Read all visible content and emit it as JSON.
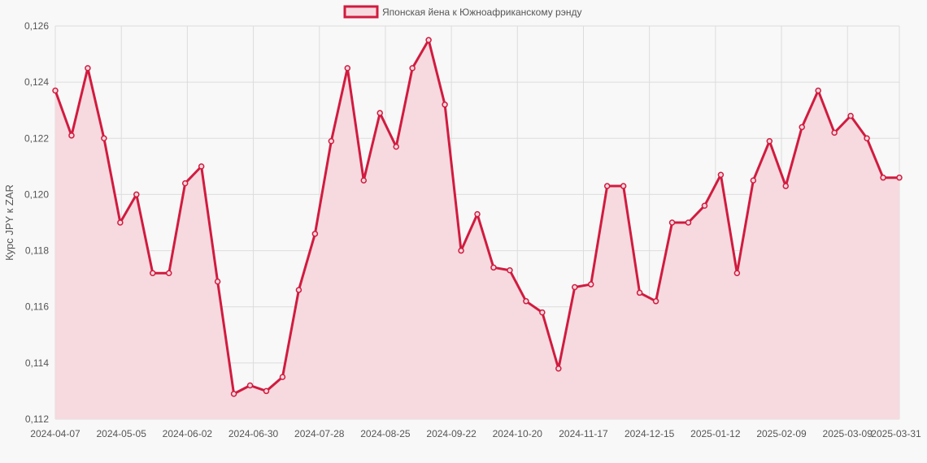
{
  "chart_data": {
    "type": "area",
    "series": [
      {
        "name": "Японская йена к Южноафриканскому рэнду",
        "color": "#d11b3f",
        "fill": "#f6dadf",
        "values": [
          0.1237,
          0.1221,
          0.1245,
          0.122,
          0.119,
          0.12,
          0.1172,
          0.1172,
          0.1204,
          0.121,
          0.1169,
          0.1129,
          0.1132,
          0.113,
          0.1135,
          0.1166,
          0.1186,
          0.1219,
          0.1245,
          0.1205,
          0.1229,
          0.1217,
          0.1245,
          0.1255,
          0.1232,
          0.118,
          0.1193,
          0.1174,
          0.1173,
          0.1162,
          0.1158,
          0.1138,
          0.1167,
          0.1168,
          0.1203,
          0.1203,
          0.1165,
          0.1162,
          0.119,
          0.119,
          0.1196,
          0.1207,
          0.1172,
          0.1205,
          0.1219,
          0.1203,
          0.1224,
          0.1237,
          0.1222,
          0.1228,
          0.122,
          0.1206,
          0.1206
        ]
      }
    ],
    "x_start": "2024-04-07",
    "x_end": "2025-03-31",
    "x_ticks": [
      "2024-04-07",
      "2024-05-05",
      "2024-06-02",
      "2024-06-30",
      "2024-07-28",
      "2024-08-25",
      "2024-09-22",
      "2024-10-20",
      "2024-11-17",
      "2024-12-15",
      "2025-01-12",
      "2025-02-09",
      "2025-03-09",
      "2025-03-31"
    ],
    "ylim": [
      0.112,
      0.126
    ],
    "y_ticks": [
      "0,112",
      "0,114",
      "0,116",
      "0,118",
      "0,120",
      "0,122",
      "0,124",
      "0,126"
    ],
    "ylabel": "Курс JPY к ZAR",
    "xlabel": "",
    "legend_position": "top-center",
    "grid": true
  }
}
